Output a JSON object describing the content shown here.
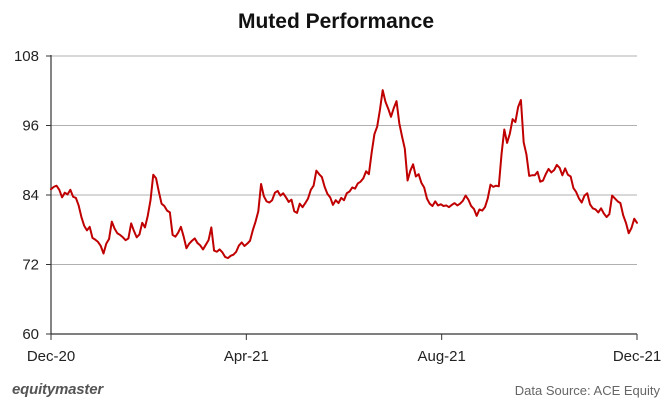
{
  "brand": "equitymaster",
  "source": "Data Source: ACE Equity",
  "colors": {
    "line": "#c00000",
    "grid": "#b0b0b0",
    "axis": "#333333"
  },
  "chart_data": {
    "type": "line",
    "title": "Muted Performance",
    "xlabel": "",
    "ylabel": "",
    "ylim": [
      60,
      108
    ],
    "yticks": [
      "108",
      "96",
      "84",
      "72",
      "60"
    ],
    "xticks": [
      "Dec-20",
      "Apr-21",
      "Aug-21",
      "Dec-21"
    ],
    "grid": true,
    "series": [
      {
        "values": [
          85,
          85.4,
          85.6,
          84.9,
          83.6,
          84.4,
          84.1,
          84.9,
          83.7,
          83.5,
          82.2,
          80.2,
          78.7,
          77.9,
          78.5,
          76.6,
          76.3,
          75.9,
          75.2,
          73.9,
          75.6,
          76.4,
          79.4,
          78.2,
          77.4,
          77.1,
          76.7,
          76.2,
          76.5,
          79.1,
          77.8,
          76.7,
          77.2,
          79.2,
          78.4,
          80.4,
          83.1,
          87.5,
          86.9,
          84.6,
          82.5,
          82.1,
          81.3,
          81,
          77.1,
          76.8,
          77.5,
          78.5,
          76.8,
          74.8,
          75.6,
          76.1,
          76.5,
          75.7,
          75.3,
          74.6,
          75.4,
          76.2,
          78.4,
          74.4,
          74.2,
          74.6,
          74.1,
          73.3,
          73.1,
          73.5,
          73.7,
          74.2,
          75.3,
          75.8,
          75.2,
          75.6,
          76.1,
          77.9,
          79.4,
          81.2,
          85.9,
          83.8,
          82.9,
          82.7,
          83.1,
          84.4,
          84.7,
          83.9,
          84.3,
          83.6,
          82.8,
          83.2,
          81.2,
          80.9,
          82.5,
          81.9,
          82.6,
          83.4,
          84.9,
          85.6,
          88.2,
          87.6,
          87.1,
          85.4,
          84.2,
          83.6,
          82.3,
          83.1,
          82.6,
          83.5,
          83.1,
          84.3,
          84.6,
          85.3,
          85.1,
          86,
          86.3,
          86.9,
          88.1,
          87.6,
          91.3,
          94.5,
          95.8,
          98.7,
          102.1,
          100.1,
          98.9,
          97.5,
          99,
          100.2,
          96.4,
          94.1,
          92,
          86.5,
          88.2,
          89.3,
          87.2,
          87.6,
          86.1,
          85.3,
          83.4,
          82.5,
          82.1,
          82.9,
          82.2,
          82.4,
          82.1,
          82.2,
          81.9,
          82.3,
          82.6,
          82.2,
          82.5,
          83,
          83.9,
          83.2,
          82.1,
          81.6,
          80.4,
          81.5,
          81.3,
          81.9,
          83.4,
          85.8,
          85.4,
          85.6,
          85.5,
          91.1,
          95.3,
          93,
          94.6,
          97.1,
          96.6,
          99.2,
          100.4,
          93.1,
          91,
          87.3,
          87.4,
          87.4,
          88,
          86.3,
          86.5,
          87.6,
          88.5,
          87.9,
          88.3,
          89.2,
          88.7,
          87.4,
          88.6,
          87.5,
          87.2,
          85.2,
          84.5,
          83.4,
          82.7,
          83.9,
          84.3,
          82.4,
          81.7,
          81.5,
          81,
          81.7,
          80.8,
          80.2,
          80.7,
          83.9,
          83.4,
          82.9,
          82.6,
          80.5,
          79.2,
          77.4,
          78.3,
          79.9,
          79.2
        ]
      }
    ]
  }
}
